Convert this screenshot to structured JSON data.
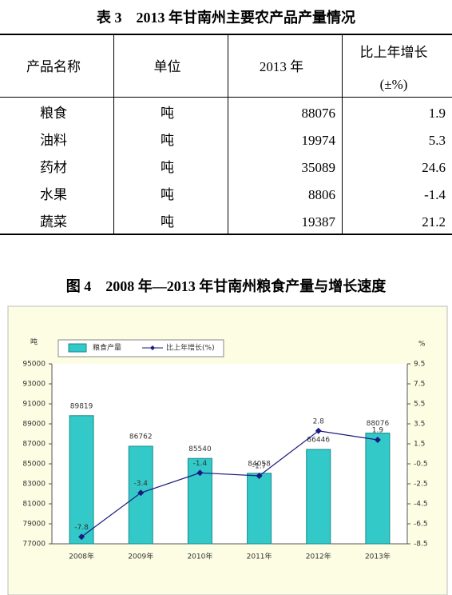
{
  "table_title": "表 3　2013 年甘南州主要农产品产量情况",
  "table": {
    "header": [
      "产品名称",
      "单位",
      "2013 年",
      [
        "比上年增长",
        "(±%)"
      ]
    ],
    "rows": [
      [
        "粮食",
        "吨",
        "88076",
        "1.9"
      ],
      [
        "油料",
        "吨",
        "19974",
        "5.3"
      ],
      [
        "药材",
        "吨",
        "35089",
        "24.6"
      ],
      [
        "水果",
        "吨",
        "8806",
        "-1.4"
      ],
      [
        "蔬菜",
        "吨",
        "19387",
        "21.2"
      ]
    ]
  },
  "chart_data": {
    "type": "bar",
    "title": "图 4　2008 年—2013 年甘南州粮食产量与增长速度",
    "y_unit": "吨",
    "y2_unit": "%",
    "categories": [
      "2008年",
      "2009年",
      "2010年",
      "2011年",
      "2012年",
      "2013年"
    ],
    "series": [
      {
        "name": "粮食产量",
        "color": "#33c9c9",
        "values": [
          89819,
          86762,
          85540,
          84058,
          86446,
          88076
        ]
      },
      {
        "name": "比上年增长(%)",
        "type": "line",
        "axis": "y2",
        "color": "#1a1a80",
        "values": [
          -7.8,
          -3.4,
          -1.4,
          -1.7,
          2.8,
          1.9
        ]
      }
    ],
    "ylim": [
      77000,
      95000
    ],
    "yticks": [
      77000,
      79000,
      81000,
      83000,
      85000,
      87000,
      89000,
      91000,
      93000,
      95000
    ],
    "y2lim": [
      -8.5,
      9.5
    ],
    "y2ticks": [
      -8.5,
      -6.5,
      -4.5,
      -2.5,
      -0.5,
      1.5,
      3.5,
      5.5,
      7.5,
      9.5
    ],
    "legend": "top-left",
    "grid": false
  }
}
